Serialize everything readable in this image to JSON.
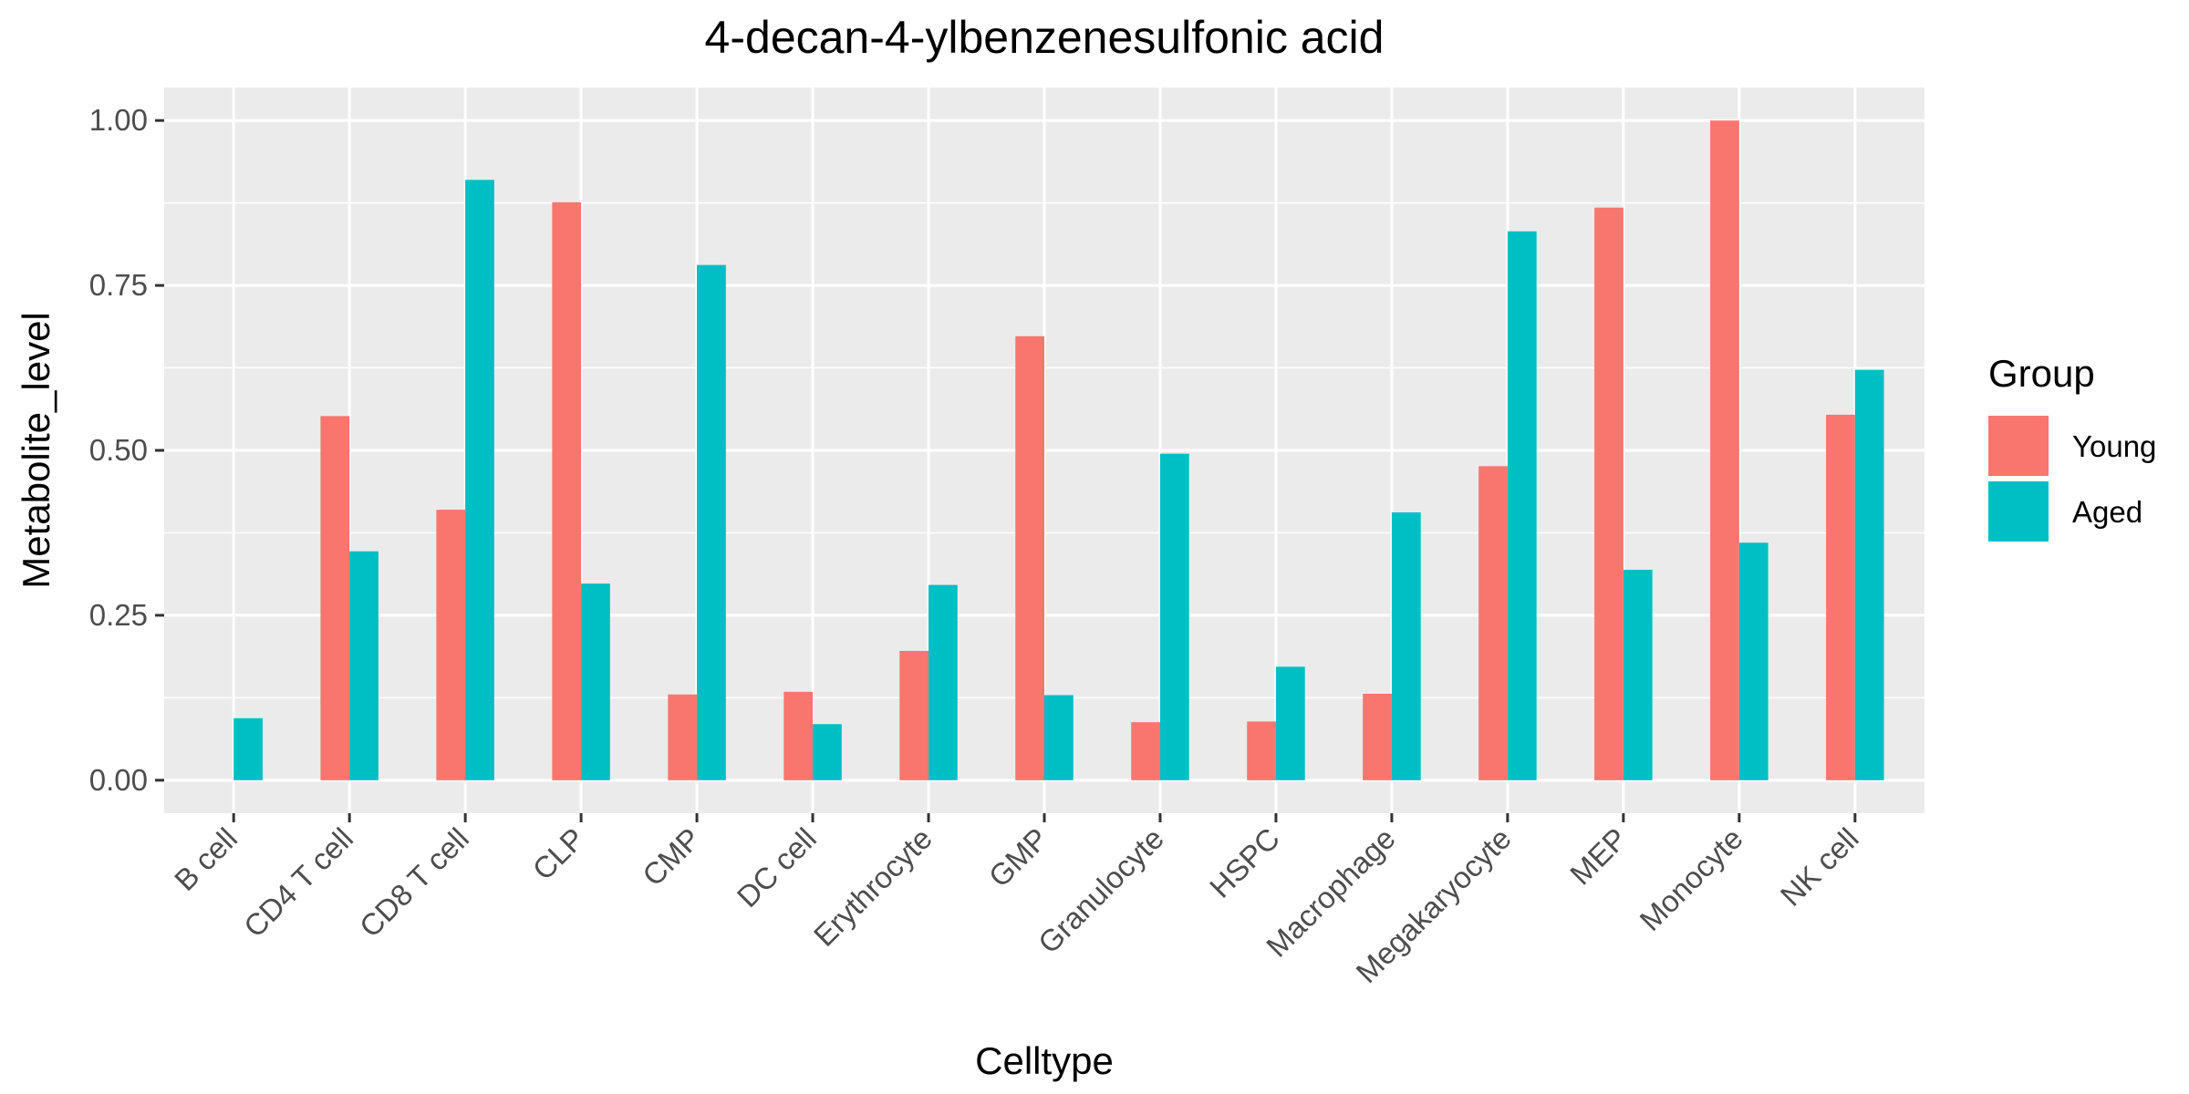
{
  "chart_data": {
    "type": "bar",
    "title": "4-decan-4-ylbenzenesulfonic acid",
    "xlabel": "Celltype",
    "ylabel": "Metabolite_level",
    "ylim": [
      -0.05,
      1.05
    ],
    "yticks": [
      0.0,
      0.25,
      0.5,
      0.75,
      1.0
    ],
    "ytick_labels": [
      "0.00",
      "0.25",
      "0.50",
      "0.75",
      "1.00"
    ],
    "grid": true,
    "legend": {
      "title": "Group",
      "placement": "right"
    },
    "categories": [
      "B cell",
      "CD4 T cell",
      "CD8 T cell",
      "CLP",
      "CMP",
      "DC cell",
      "Erythrocyte",
      "GMP",
      "Granulocyte",
      "HSPC",
      "Macrophage",
      "Megakaryocyte",
      "MEP",
      "Monocyte",
      "NK cell"
    ],
    "series": [
      {
        "name": "Young",
        "color": "#F8766D",
        "values": [
          0.0,
          0.552,
          0.41,
          0.876,
          0.13,
          0.134,
          0.196,
          0.673,
          0.088,
          0.089,
          0.131,
          0.476,
          0.868,
          1.0,
          0.554
        ]
      },
      {
        "name": "Aged",
        "color": "#00BFC4",
        "values": [
          0.094,
          0.347,
          0.91,
          0.298,
          0.781,
          0.085,
          0.296,
          0.129,
          0.495,
          0.172,
          0.406,
          0.832,
          0.319,
          0.36,
          0.622
        ]
      }
    ]
  }
}
